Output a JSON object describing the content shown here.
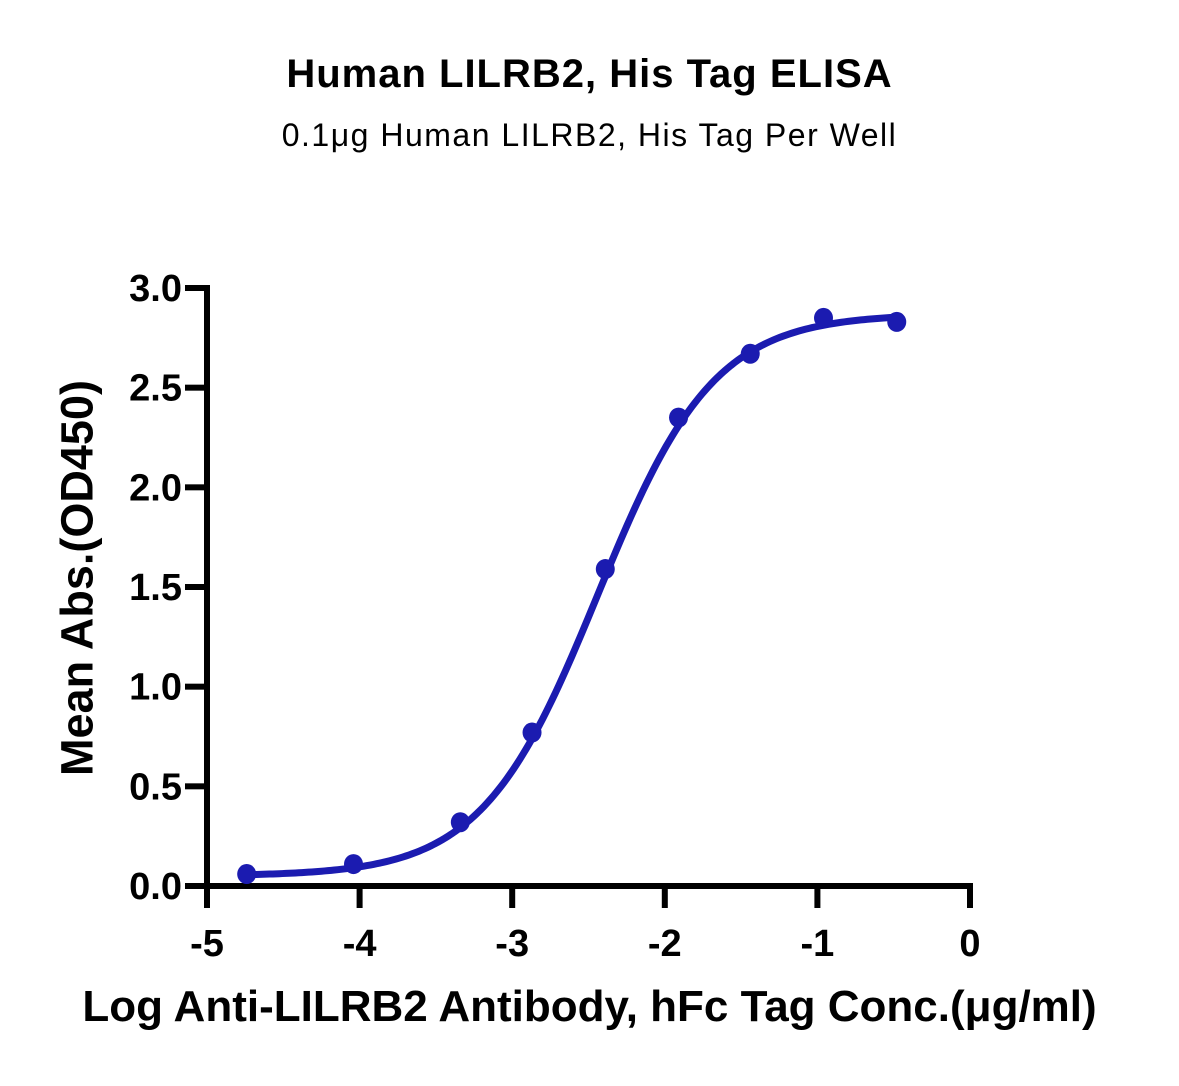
{
  "header": {
    "title": "Human LILRB2, His Tag ELISA",
    "subtitle": "0.1μg Human LILRB2, His Tag Per Well"
  },
  "axes": {
    "x": {
      "label": "Log Anti-LILRB2 Antibody, hFc Tag Conc.(μg/ml)",
      "tick_labels": [
        "-5",
        "-4",
        "-3",
        "-2",
        "-1",
        "0"
      ],
      "tick_values": [
        -5,
        -4,
        -3,
        -2,
        -1,
        0
      ]
    },
    "y": {
      "label": "Mean Abs.(OD450)",
      "tick_labels": [
        "0.0",
        "0.5",
        "1.0",
        "1.5",
        "2.0",
        "2.5",
        "3.0"
      ],
      "tick_values": [
        0,
        0.5,
        1,
        1.5,
        2,
        2.5,
        3
      ]
    }
  },
  "chart_data": {
    "type": "line",
    "title": "Human LILRB2, His Tag ELISA",
    "subtitle": "0.1μg Human LILRB2, His Tag Per Well",
    "xlabel": "Log Anti-LILRB2 Antibody, hFc Tag Conc.(μg/ml)",
    "ylabel": "Mean Abs.(OD450)",
    "xlim": [
      -5,
      0
    ],
    "ylim": [
      0,
      3
    ],
    "grid": false,
    "legend": null,
    "series": [
      {
        "name": "Anti-LILRB2 Antibody, hFc Tag",
        "marker": "circle",
        "color": "#1b1bb0",
        "x": [
          -4.74,
          -4.04,
          -3.34,
          -2.87,
          -2.39,
          -1.91,
          -1.44,
          -0.96,
          -0.48
        ],
        "y": [
          0.06,
          0.11,
          0.32,
          0.77,
          1.59,
          2.35,
          2.67,
          2.85,
          2.83
        ]
      }
    ],
    "curve_fit": {
      "model": "4PL",
      "bottom": 0.05,
      "top": 2.87,
      "logEC50": -2.44,
      "hill_slope": 1.14
    }
  },
  "colors": {
    "series": "#1b1bb0",
    "axis": "#000000",
    "text": "#000000",
    "background": "#ffffff"
  }
}
